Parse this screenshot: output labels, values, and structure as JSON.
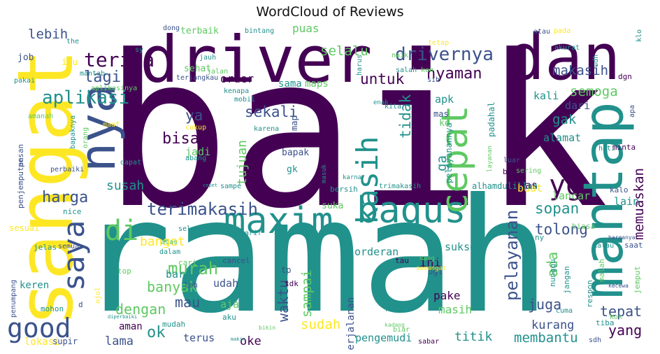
{
  "chart_data": {
    "type": "wordcloud",
    "title": "WordCloud of Reviews",
    "colormap": [
      "#440154",
      "#3b528b",
      "#21918c",
      "#5ec962",
      "#fde725"
    ],
    "words": [
      {
        "text": "baik",
        "weight": 100
      },
      {
        "text": "ramah",
        "weight": 92
      },
      {
        "text": "sangat",
        "weight": 48
      },
      {
        "text": "driver",
        "weight": 40
      },
      {
        "text": "dan",
        "weight": 40
      },
      {
        "text": "mantap",
        "weight": 34
      },
      {
        "text": "nya",
        "weight": 32
      },
      {
        "text": "bagus",
        "weight": 24
      },
      {
        "text": "maxim",
        "weight": 22
      },
      {
        "text": "cepat",
        "weight": 21
      },
      {
        "text": "kasih",
        "weight": 19
      },
      {
        "text": "saya",
        "weight": 18
      },
      {
        "text": "good",
        "weight": 17
      },
      {
        "text": "yg",
        "weight": 17
      },
      {
        "text": "di",
        "weight": 16
      },
      {
        "text": "terima",
        "weight": 14
      },
      {
        "text": "drivernya",
        "weight": 12
      },
      {
        "text": "aplikasi",
        "weight": 12
      },
      {
        "text": "terimakasih",
        "weight": 13
      },
      {
        "text": "murah",
        "weight": 12
      },
      {
        "text": "pelayanan",
        "weight": 12
      },
      {
        "text": "lagi",
        "weight": 11
      },
      {
        "text": "harga",
        "weight": 11
      },
      {
        "text": "ok",
        "weight": 11
      },
      {
        "text": "bisa",
        "weight": 11
      },
      {
        "text": "nyaman",
        "weight": 10
      },
      {
        "text": "untuk",
        "weight": 10
      },
      {
        "text": "tapi",
        "weight": 10
      },
      {
        "text": "sekali",
        "weight": 10
      },
      {
        "text": "tidak",
        "weight": 10
      },
      {
        "text": "ya",
        "weight": 10
      },
      {
        "text": "sopan",
        "weight": 10
      },
      {
        "text": "tolong",
        "weight": 10
      },
      {
        "text": "juga",
        "weight": 10
      },
      {
        "text": "tepat",
        "weight": 10
      },
      {
        "text": "banyak",
        "weight": 9
      },
      {
        "text": "dengan",
        "weight": 9
      },
      {
        "text": "mau",
        "weight": 9
      },
      {
        "text": "waktu",
        "weight": 9
      },
      {
        "text": "yang",
        "weight": 9
      },
      {
        "text": "ada",
        "weight": 9
      },
      {
        "text": "lebih",
        "weight": 8
      },
      {
        "text": "makasih",
        "weight": 8
      },
      {
        "text": "selalu",
        "weight": 8
      },
      {
        "text": "semoga",
        "weight": 8
      },
      {
        "text": "gak",
        "weight": 8
      },
      {
        "text": "ga",
        "weight": 8
      },
      {
        "text": "sampai",
        "weight": 8
      },
      {
        "text": "sudah",
        "weight": 8
      },
      {
        "text": "memuaskan",
        "weight": 8
      },
      {
        "text": "membantu",
        "weight": 8
      },
      {
        "text": "banget",
        "weight": 8
      },
      {
        "text": "susah",
        "weight": 8
      },
      {
        "text": "tujuan",
        "weight": 8
      },
      {
        "text": "titik",
        "weight": 8
      },
      {
        "text": "lama",
        "weight": 7
      },
      {
        "text": "oke",
        "weight": 7
      },
      {
        "text": "kurang",
        "weight": 7
      },
      {
        "text": "ini",
        "weight": 7
      },
      {
        "text": "order",
        "weight": 6
      },
      {
        "text": "puas",
        "weight": 6
      },
      {
        "text": "apk",
        "weight": 6
      },
      {
        "text": "kali",
        "weight": 6
      },
      {
        "text": "dari",
        "weight": 6
      },
      {
        "text": "alamat",
        "weight": 6
      },
      {
        "text": "pake",
        "weight": 6
      },
      {
        "text": "pas",
        "weight": 6
      },
      {
        "text": "jadi",
        "weight": 6
      },
      {
        "text": "aja",
        "weight": 6
      },
      {
        "text": "masih",
        "weight": 6
      },
      {
        "text": "udah",
        "weight": 6
      },
      {
        "text": "baru",
        "weight": 6
      },
      {
        "text": "lancar",
        "weight": 6
      },
      {
        "text": "buat",
        "weight": 6
      },
      {
        "text": "lain",
        "weight": 6
      },
      {
        "text": "sukses",
        "weight": 5
      },
      {
        "text": "orderan",
        "weight": 5
      },
      {
        "text": "perjalanan",
        "weight": 5
      },
      {
        "text": "pengemudi",
        "weight": 5
      },
      {
        "text": "terus",
        "weight": 5
      },
      {
        "text": "aman",
        "weight": 5
      },
      {
        "text": "keren",
        "weight": 5
      },
      {
        "text": "lokasi",
        "weight": 5
      },
      {
        "text": "sama",
        "weight": 5
      },
      {
        "text": "maps",
        "weight": 5
      },
      {
        "text": "sehat",
        "weight": 5
      },
      {
        "text": "terbaik",
        "weight": 5
      },
      {
        "text": "job",
        "weight": 5
      },
      {
        "text": "itu",
        "weight": 5
      },
      {
        "text": "gk",
        "weight": 5
      },
      {
        "text": "suka",
        "weight": 5
      },
      {
        "text": "bapak",
        "weight": 5
      },
      {
        "text": "pelayanannya",
        "weight": 4
      },
      {
        "text": "padahal",
        "weight": 4
      },
      {
        "text": "ke",
        "weight": 4
      },
      {
        "text": "map",
        "weight": 4
      },
      {
        "text": "mas",
        "weight": 4
      },
      {
        "text": "bgt",
        "weight": 4
      },
      {
        "text": "tp",
        "weight": 4
      },
      {
        "text": "alhamdulillah",
        "weight": 4
      },
      {
        "text": "trimakasih",
        "weight": 3
      },
      {
        "text": "biasa",
        "weight": 4
      },
      {
        "text": "saat",
        "weight": 4
      },
      {
        "text": "kalau",
        "weight": 3
      },
      {
        "text": "tau",
        "weight": 4
      },
      {
        "text": "tdk",
        "weight": 4
      },
      {
        "text": "cancel",
        "weight": 4
      },
      {
        "text": "cari",
        "weight": 4
      },
      {
        "text": "lah",
        "weight": 4
      },
      {
        "text": "top",
        "weight": 4
      },
      {
        "text": "supir",
        "weight": 4
      },
      {
        "text": "mudah",
        "weight": 4
      },
      {
        "text": "aku",
        "weight": 4
      },
      {
        "text": "sesuai",
        "weight": 4
      },
      {
        "text": "jelas",
        "weight": 4
      },
      {
        "text": "semua",
        "weight": 3
      },
      {
        "text": "nice",
        "weight": 4
      },
      {
        "text": "pesan",
        "weight": 4
      },
      {
        "text": "penjemputan",
        "weight": 4
      },
      {
        "text": "penumpang",
        "weight": 3
      },
      {
        "text": "mohon",
        "weight": 4
      },
      {
        "text": "d",
        "weight": 4
      },
      {
        "text": "ojol",
        "weight": 3
      },
      {
        "text": "dalam",
        "weight": 4
      },
      {
        "text": "atas",
        "weight": 4
      },
      {
        "text": "selamat",
        "weight": 4
      },
      {
        "text": "tarif",
        "weight": 3
      },
      {
        "text": "sampe",
        "weight": 3
      },
      {
        "text": "cepet",
        "weight": 2
      },
      {
        "text": "bersih",
        "weight": 4
      },
      {
        "text": "masuk",
        "weight": 3
      },
      {
        "text": "karna",
        "weight": 3
      },
      {
        "text": "layanan",
        "weight": 3
      },
      {
        "text": "luar",
        "weight": 3
      },
      {
        "text": "best",
        "weight": 4
      },
      {
        "text": "sering",
        "weight": 3
      },
      {
        "text": "kalo",
        "weight": 3
      },
      {
        "text": "hati",
        "weight": 3
      },
      {
        "text": "minta",
        "weight": 3
      },
      {
        "text": "apa",
        "weight": 3
      },
      {
        "text": "dgn",
        "weight": 3
      },
      {
        "text": "udh",
        "weight": 3
      },
      {
        "text": "klo",
        "weight": 3
      },
      {
        "text": "pada",
        "weight": 3
      },
      {
        "text": "atau",
        "weight": 3
      },
      {
        "text": "akurat",
        "weight": 3
      },
      {
        "text": "tetap",
        "weight": 3
      },
      {
        "text": "naik",
        "weight": 3
      },
      {
        "text": "harus",
        "weight": 3
      },
      {
        "text": "bintang",
        "weight": 3
      },
      {
        "text": "dong",
        "weight": 3
      },
      {
        "text": "jauh",
        "weight": 3
      },
      {
        "text": "jalan",
        "weight": 3
      },
      {
        "text": "terjangkau",
        "weight": 3
      },
      {
        "text": "kenapa",
        "weight": 3
      },
      {
        "text": "mobil",
        "weight": 3
      },
      {
        "text": "karena",
        "weight": 3
      },
      {
        "text": "cukup",
        "weight": 3
      },
      {
        "text": "abang",
        "weight": 3
      },
      {
        "text": "dapat",
        "weight": 3
      },
      {
        "text": "perbaiki",
        "weight": 3
      },
      {
        "text": "maaf",
        "weight": 3
      },
      {
        "text": "amanah",
        "weight": 3
      },
      {
        "text": "pakai",
        "weight": 3
      },
      {
        "text": "bapaknya",
        "weight": 3
      },
      {
        "text": "orang",
        "weight": 3
      },
      {
        "text": "aplikasinya",
        "weight": 3
      },
      {
        "text": "mantab",
        "weight": 3
      },
      {
        "text": "the",
        "weight": 3
      },
      {
        "text": "sy",
        "weight": 3
      },
      {
        "text": "salah",
        "weight": 3
      },
      {
        "text": "kan",
        "weight": 3
      },
      {
        "text": "sih",
        "weight": 3
      },
      {
        "text": "kita",
        "weight": 3
      },
      {
        "text": "enak",
        "weight": 3
      },
      {
        "text": "belum",
        "weight": 3
      },
      {
        "text": "semangat",
        "weight": 3
      },
      {
        "text": "uang",
        "weight": 3
      },
      {
        "text": "pertama",
        "weight": 3
      },
      {
        "text": "biar",
        "weight": 3
      },
      {
        "text": "kadang",
        "weight": 2
      },
      {
        "text": "bikin",
        "weight": 2
      },
      {
        "text": "diperbaiki",
        "weight": 2
      },
      {
        "text": "makin",
        "weight": 2
      },
      {
        "text": "sabar",
        "weight": 3
      },
      {
        "text": "cuma",
        "weight": 3
      },
      {
        "text": "tiba",
        "weight": 3
      },
      {
        "text": "sdh",
        "weight": 3
      },
      {
        "text": "kok",
        "weight": 3
      },
      {
        "text": "jemput",
        "weight": 3
      },
      {
        "text": "kecewa",
        "weight": 2
      },
      {
        "text": "respon",
        "weight": 3
      },
      {
        "text": "malah",
        "weight": 3
      },
      {
        "text": "nunggu",
        "weight": 3
      },
      {
        "text": "jangan",
        "weight": 3
      },
      {
        "text": "harganya",
        "weight": 2
      },
      {
        "text": "ny",
        "weight": 3
      }
    ]
  }
}
